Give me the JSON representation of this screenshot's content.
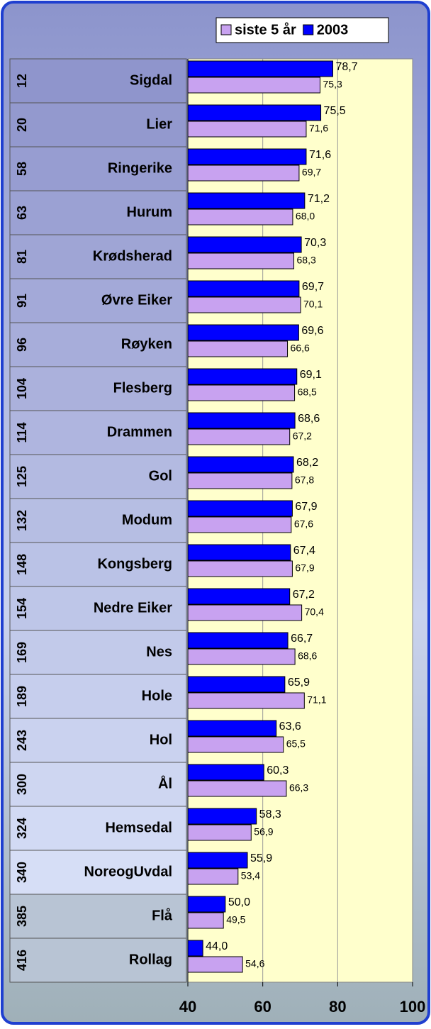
{
  "chart_data": {
    "type": "bar",
    "orientation": "horizontal",
    "categories": [
      "Sigdal",
      "Lier",
      "Ringerike",
      "Hurum",
      "Krødsherad",
      "Øvre Eiker",
      "Røyken",
      "Flesberg",
      "Drammen",
      "Gol",
      "Modum",
      "Kongsberg",
      "Nedre Eiker",
      "Nes",
      "Hole",
      "Hol",
      "Ål",
      "Hemsedal",
      "NoreogUvdal",
      "Flå",
      "Rollag"
    ],
    "ranks": [
      12,
      20,
      58,
      63,
      81,
      91,
      96,
      104,
      114,
      125,
      132,
      148,
      154,
      169,
      189,
      243,
      300,
      324,
      340,
      385,
      416
    ],
    "series": [
      {
        "name": "siste 5 år",
        "color": "#c8a2f0",
        "values": [
          75.3,
          71.6,
          69.7,
          68.0,
          68.3,
          70.1,
          66.6,
          68.5,
          67.2,
          67.8,
          67.6,
          67.9,
          70.4,
          68.6,
          71.1,
          65.5,
          66.3,
          56.9,
          53.4,
          49.5,
          54.6
        ],
        "value_labels": [
          "75,3",
          "71,6",
          "69,7",
          "68,0",
          "68,3",
          "70,1",
          "66,6",
          "68,5",
          "67,2",
          "67,8",
          "67,6",
          "67,9",
          "70,4",
          "68,6",
          "71,1",
          "65,5",
          "66,3",
          "56,9",
          "53,4",
          "49,5",
          "54,6"
        ]
      },
      {
        "name": "2003",
        "color": "#0000ff",
        "values": [
          78.7,
          75.5,
          71.6,
          71.2,
          70.3,
          69.7,
          69.6,
          69.1,
          68.6,
          68.2,
          67.9,
          67.4,
          67.2,
          66.7,
          65.9,
          63.6,
          60.3,
          58.3,
          55.9,
          50.0,
          44.0
        ],
        "value_labels": [
          "78,7",
          "75,5",
          "71,6",
          "71,2",
          "70,3",
          "69,7",
          "69,6",
          "69,1",
          "68,6",
          "68,2",
          "67,9",
          "67,4",
          "67,2",
          "66,7",
          "65,9",
          "63,6",
          "60,3",
          "58,3",
          "55,9",
          "50,0",
          "44,0"
        ]
      }
    ],
    "xlim": [
      40,
      100
    ],
    "xticks": [
      40,
      60,
      80,
      100
    ],
    "grid": true
  }
}
